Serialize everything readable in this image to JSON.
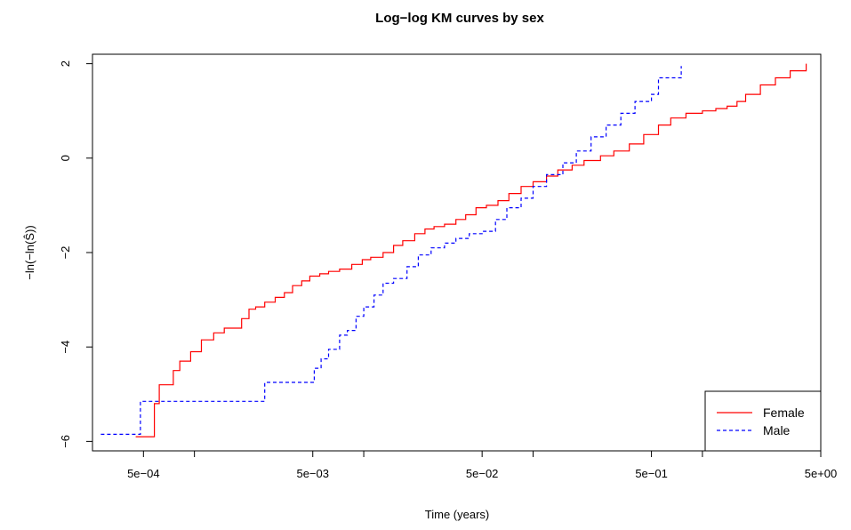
{
  "chart_data": {
    "type": "line",
    "title": "Log−log KM curves by sex",
    "xlabel": "Time (years)",
    "ylabel": "−ln(−ln(Ŝ))",
    "x_scale": "log",
    "xlim": [
      0.00025,
      5.0
    ],
    "ylim": [
      -6.2,
      2.2
    ],
    "x_ticks": [
      0.0005,
      0.001,
      0.005,
      0.01,
      0.05,
      0.1,
      0.5,
      1,
      5
    ],
    "x_tick_labels": [
      "5e−04",
      "",
      "5e−03",
      "",
      "5e−02",
      "",
      "5e−01",
      "",
      "5e+00"
    ],
    "y_ticks": [
      -6,
      -4,
      -2,
      0,
      2
    ],
    "y_tick_labels": [
      "−6",
      "−4",
      "−2",
      "0",
      "2"
    ],
    "legend": {
      "position": "bottom-right"
    },
    "series": [
      {
        "name": "Female",
        "color": "#ff0000",
        "dash": "solid",
        "x": [
          0.00045,
          0.00058,
          0.00062,
          0.00075,
          0.00082,
          0.00095,
          0.0011,
          0.0013,
          0.0015,
          0.0019,
          0.0021,
          0.0023,
          0.0026,
          0.003,
          0.0034,
          0.0038,
          0.0043,
          0.0048,
          0.0055,
          0.0062,
          0.0072,
          0.0085,
          0.0098,
          0.011,
          0.013,
          0.015,
          0.017,
          0.02,
          0.023,
          0.026,
          0.03,
          0.035,
          0.04,
          0.046,
          0.053,
          0.062,
          0.072,
          0.085,
          0.1,
          0.12,
          0.14,
          0.17,
          0.2,
          0.25,
          0.3,
          0.37,
          0.45,
          0.55,
          0.65,
          0.8,
          1.0,
          1.2,
          1.4,
          1.6,
          1.8,
          2.2,
          2.7,
          3.3,
          4.0,
          4.1
        ],
        "y": [
          -5.9,
          -5.2,
          -4.8,
          -4.5,
          -4.3,
          -4.1,
          -3.85,
          -3.7,
          -3.6,
          -3.4,
          -3.2,
          -3.15,
          -3.05,
          -2.95,
          -2.85,
          -2.7,
          -2.6,
          -2.5,
          -2.45,
          -2.4,
          -2.35,
          -2.25,
          -2.15,
          -2.1,
          -2.0,
          -1.85,
          -1.75,
          -1.6,
          -1.5,
          -1.45,
          -1.4,
          -1.3,
          -1.2,
          -1.05,
          -1.0,
          -0.9,
          -0.75,
          -0.6,
          -0.5,
          -0.38,
          -0.25,
          -0.15,
          -0.05,
          0.05,
          0.15,
          0.3,
          0.5,
          0.7,
          0.85,
          0.95,
          1.0,
          1.05,
          1.1,
          1.2,
          1.35,
          1.55,
          1.7,
          1.85,
          1.85,
          2.0
        ]
      },
      {
        "name": "Male",
        "color": "#0000ff",
        "dash": "dashed",
        "x": [
          0.00028,
          0.00047,
          0.00048,
          0.0025,
          0.0026,
          0.0047,
          0.0051,
          0.0056,
          0.0062,
          0.0072,
          0.008,
          0.009,
          0.01,
          0.0115,
          0.013,
          0.015,
          0.018,
          0.021,
          0.025,
          0.03,
          0.035,
          0.042,
          0.05,
          0.06,
          0.07,
          0.085,
          0.1,
          0.12,
          0.15,
          0.18,
          0.22,
          0.27,
          0.33,
          0.4,
          0.5,
          0.55,
          0.7,
          0.75
        ],
        "y": [
          -5.85,
          -5.85,
          -5.15,
          -5.15,
          -4.75,
          -4.75,
          -4.45,
          -4.25,
          -4.05,
          -3.75,
          -3.65,
          -3.35,
          -3.15,
          -2.9,
          -2.65,
          -2.55,
          -2.3,
          -2.05,
          -1.9,
          -1.8,
          -1.7,
          -1.6,
          -1.55,
          -1.3,
          -1.05,
          -0.85,
          -0.6,
          -0.35,
          -0.1,
          0.15,
          0.45,
          0.7,
          0.95,
          1.2,
          1.35,
          1.7,
          1.7,
          1.95
        ]
      }
    ]
  }
}
